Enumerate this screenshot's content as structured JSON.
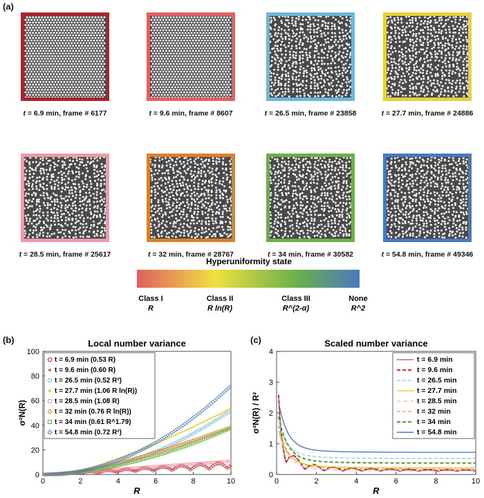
{
  "panel_labels": {
    "a": "(a)",
    "b": "(b)",
    "c": "(c)"
  },
  "frames": [
    {
      "time": "6.9 min",
      "frame": "frame # 6177",
      "color": "#a8262b"
    },
    {
      "time": "9.6 min",
      "frame": "frame # 8607",
      "color": "#e26060"
    },
    {
      "time": "26.5 min",
      "frame": "frame # 23858",
      "color": "#6bb7d8"
    },
    {
      "time": "27.7 min",
      "frame": "frame # 24886",
      "color": "#e8d135"
    },
    {
      "time": "28.5 min",
      "frame": "frame # 25617",
      "color": "#ee9aa8"
    },
    {
      "time": "32 min",
      "frame": "frame # 28767",
      "color": "#d9822b"
    },
    {
      "time": "34 min",
      "frame": "frame # 30582",
      "color": "#6ab04a"
    },
    {
      "time": "54.8 min",
      "frame": "frame # 49346",
      "color": "#4a78c0"
    }
  ],
  "hyperuniformity": {
    "title": "Hyperuniformity state",
    "classes": [
      {
        "label": "Class I",
        "law": "R"
      },
      {
        "label": "Class II",
        "law": "R ln(R)"
      },
      {
        "label": "Class III",
        "law": "R^(2-α)"
      },
      {
        "label": "None",
        "law": "R^2"
      }
    ],
    "gradient_colors": [
      "#e06060",
      "#f0e040",
      "#6ab04a",
      "#4a78c0"
    ]
  },
  "chart_data": [
    {
      "type": "scatter",
      "title": "Local number variance",
      "xlabel": "R",
      "ylabel": "σ²N(R)",
      "xlim": [
        0,
        10
      ],
      "ylim": [
        0,
        100
      ],
      "xticks": [
        0,
        2,
        4,
        6,
        8,
        10
      ],
      "yticks": [
        0,
        20,
        40,
        60,
        80,
        100
      ],
      "grid": false,
      "legend_position": "top-left",
      "series": [
        {
          "name": "t = 6.9 min (0.53 R)",
          "color": "#a8262b",
          "marker": "circle",
          "model": "oscR",
          "coef": 0.53
        },
        {
          "name": "t = 9.6 min (0.60 R)",
          "color": "#e26060",
          "marker": "dot",
          "model": "oscR",
          "coef": 0.6
        },
        {
          "name": "t = 26.5 min (0.52 R²)",
          "color": "#6bb7d8",
          "marker": "circle",
          "model": "R2",
          "coef": 0.52
        },
        {
          "name": "t = 27.7 min (1.06 R ln(R))",
          "color": "#e8d135",
          "marker": "dot",
          "model": "RlnR",
          "coef": 1.06
        },
        {
          "name": "t = 28.5 min (1.08 R)",
          "color": "#ee9aa8",
          "marker": "square",
          "model": "R",
          "coef": 1.08
        },
        {
          "name": "t = 32 min (0.76 R ln(R))",
          "color": "#d9822b",
          "marker": "diamond",
          "model": "RlnR",
          "coef": 0.76
        },
        {
          "name": "t = 34 min (0.61 R^1.79)",
          "color": "#6ab04a",
          "marker": "square",
          "model": "Rpow",
          "coef": 0.61,
          "exp": 1.79
        },
        {
          "name": "t = 54.8 min (0.72 R²)",
          "color": "#4a78c0",
          "marker": "diamond",
          "model": "R2",
          "coef": 0.72
        }
      ]
    },
    {
      "type": "line",
      "title": "Scaled number variance",
      "xlabel": "R",
      "ylabel": "σ²N(R) / R²",
      "xlim": [
        0,
        10
      ],
      "ylim": [
        0,
        4
      ],
      "xticks": [
        0,
        2,
        4,
        6,
        8,
        10
      ],
      "yticks": [
        0,
        1,
        2,
        3,
        4
      ],
      "grid": false,
      "legend_position": "top-right",
      "series": [
        {
          "name": "t = 6.9 min",
          "color": "#a8262b",
          "dash": "solid",
          "width": 1,
          "base": 0.05,
          "osc": 1
        },
        {
          "name": "t = 9.6 min",
          "color": "#c43030",
          "dash": "dash",
          "width": 2,
          "base": 0.07,
          "osc": 1
        },
        {
          "name": "t = 26.5 min",
          "color": "#6bb7d8",
          "dash": "dash",
          "width": 1,
          "base": 0.52,
          "osc": 0
        },
        {
          "name": "t = 27.7 min",
          "color": "#e8d135",
          "dash": "solid",
          "width": 1.4,
          "base": 0.22,
          "osc": 0
        },
        {
          "name": "t = 28.5 min",
          "color": "#ee9aa8",
          "dash": "dashdot",
          "width": 1,
          "base": 0.12,
          "osc": 0
        },
        {
          "name": "t = 32 min",
          "color": "#d9822b",
          "dash": "dash",
          "width": 1,
          "base": 0.18,
          "osc": 0
        },
        {
          "name": "t = 34 min",
          "color": "#5aa040",
          "dash": "dash",
          "width": 2.2,
          "base": 0.37,
          "osc": 0
        },
        {
          "name": "t = 54.8 min",
          "color": "#4a78c0",
          "dash": "solid",
          "width": 1.4,
          "base": 0.72,
          "osc": 0
        }
      ]
    }
  ]
}
